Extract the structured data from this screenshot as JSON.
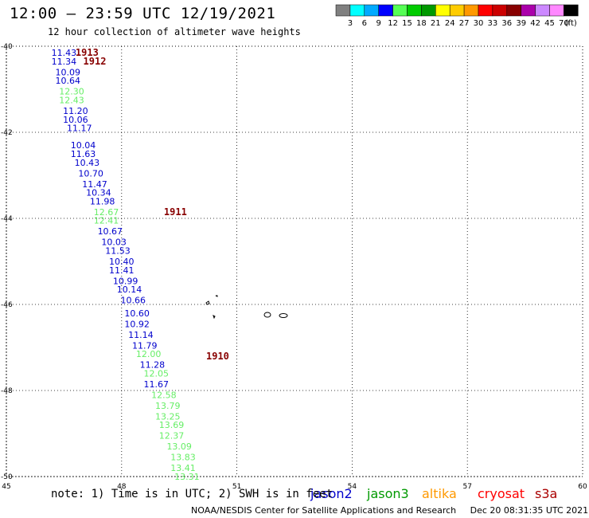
{
  "header": {
    "title": "12:00 – 23:59 UTC 12/19/2021",
    "subtitle": "12 hour collection of altimeter wave heights"
  },
  "footer": {
    "credit": "NOAA/NESDIS Center for Satellite Applications and Research",
    "timestamp": "Dec 20 08:31:35 UTC 2021",
    "note": "note:  1) Time is in UTC;  2) SWH is in feet"
  },
  "colorbar": {
    "unit": "(ft)",
    "ticks": [
      "3",
      "6",
      "9",
      "12",
      "15",
      "18",
      "21",
      "24",
      "27",
      "30",
      "33",
      "36",
      "39",
      "42",
      "45",
      "70"
    ],
    "colors": [
      "#808080",
      "#00ffff",
      "#00aaff",
      "#0000ff",
      "#55ff55",
      "#00cc00",
      "#009900",
      "#ffff00",
      "#ffcc00",
      "#ff9900",
      "#ff0000",
      "#cc0000",
      "#880000",
      "#aa00aa",
      "#cc88ff",
      "#ff88ff",
      "#000000"
    ]
  },
  "satellites": [
    {
      "name": "jason2",
      "color": "#0000cc"
    },
    {
      "name": "jason3",
      "color": "#009900"
    },
    {
      "name": "altika",
      "color": "#ff9900"
    },
    {
      "name": "cryosat",
      "color": "#ff0000"
    },
    {
      "name": "s3a",
      "color": "#aa0000"
    }
  ],
  "chart_data": {
    "type": "scatter",
    "xlim": [
      45,
      60
    ],
    "ylim": [
      -50,
      -40
    ],
    "x_ticks": [
      "45",
      "48",
      "51",
      "54",
      "57",
      "60"
    ],
    "y_ticks": [
      "-40",
      "-42",
      "-44",
      "-46",
      "-48",
      "-50"
    ],
    "grid": true,
    "series": [
      {
        "name": "jason2",
        "color": "#0000cc",
        "points": [
          {
            "x": 46.5,
            "y": -40.15,
            "v": "11.43"
          },
          {
            "x": 46.5,
            "y": -40.35,
            "v": "11.34"
          },
          {
            "x": 46.6,
            "y": -40.6,
            "v": "10.09"
          },
          {
            "x": 46.6,
            "y": -40.8,
            "v": "10.64"
          },
          {
            "x": 46.8,
            "y": -41.5,
            "v": "11.20"
          },
          {
            "x": 46.8,
            "y": -41.7,
            "v": "10.06"
          },
          {
            "x": 46.9,
            "y": -41.9,
            "v": "11.17"
          },
          {
            "x": 47.0,
            "y": -42.3,
            "v": "10.04"
          },
          {
            "x": 47.0,
            "y": -42.5,
            "v": "11.63"
          },
          {
            "x": 47.1,
            "y": -42.7,
            "v": "10.43"
          },
          {
            "x": 47.2,
            "y": -42.95,
            "v": "10.70"
          },
          {
            "x": 47.3,
            "y": -43.2,
            "v": "11.47"
          },
          {
            "x": 47.4,
            "y": -43.4,
            "v": "10.34"
          },
          {
            "x": 47.5,
            "y": -43.6,
            "v": "11.98"
          },
          {
            "x": 47.7,
            "y": -44.3,
            "v": "10.67"
          },
          {
            "x": 47.8,
            "y": -44.55,
            "v": "10.03"
          },
          {
            "x": 47.9,
            "y": -44.75,
            "v": "11.53"
          },
          {
            "x": 48.0,
            "y": -45.0,
            "v": "10.40"
          },
          {
            "x": 48.0,
            "y": -45.2,
            "v": "11.41"
          },
          {
            "x": 48.1,
            "y": -45.45,
            "v": "10.99"
          },
          {
            "x": 48.2,
            "y": -45.65,
            "v": "10.14"
          },
          {
            "x": 48.3,
            "y": -45.9,
            "v": "10.66"
          },
          {
            "x": 48.4,
            "y": -46.2,
            "v": "10.60"
          },
          {
            "x": 48.4,
            "y": -46.45,
            "v": "10.92"
          },
          {
            "x": 48.5,
            "y": -46.7,
            "v": "11.14"
          },
          {
            "x": 48.6,
            "y": -46.95,
            "v": "11.79"
          },
          {
            "x": 48.8,
            "y": -47.4,
            "v": "11.28"
          },
          {
            "x": 48.9,
            "y": -47.85,
            "v": "11.67"
          }
        ]
      },
      {
        "name": "jason3",
        "color": "#66ee66",
        "points": [
          {
            "x": 46.7,
            "y": -41.05,
            "v": "12.30"
          },
          {
            "x": 46.7,
            "y": -41.25,
            "v": "12.43"
          },
          {
            "x": 47.6,
            "y": -43.85,
            "v": "12.67"
          },
          {
            "x": 47.6,
            "y": -44.05,
            "v": "12.41"
          },
          {
            "x": 48.7,
            "y": -47.15,
            "v": "12.00"
          },
          {
            "x": 48.9,
            "y": -47.6,
            "v": "12.05"
          },
          {
            "x": 49.1,
            "y": -48.1,
            "v": "12.58"
          },
          {
            "x": 49.2,
            "y": -48.35,
            "v": "13.79"
          },
          {
            "x": 49.2,
            "y": -48.6,
            "v": "13.25"
          },
          {
            "x": 49.3,
            "y": -48.8,
            "v": "13.69"
          },
          {
            "x": 49.3,
            "y": -49.05,
            "v": "12.37"
          },
          {
            "x": 49.5,
            "y": -49.3,
            "v": "13.09"
          },
          {
            "x": 49.6,
            "y": -49.55,
            "v": "13.83"
          },
          {
            "x": 49.6,
            "y": -49.8,
            "v": "13.41"
          },
          {
            "x": 49.7,
            "y": -50.0,
            "v": "13.31"
          }
        ]
      }
    ],
    "annotations": [
      {
        "text": "1913",
        "x": 47.1,
        "y": -40.15,
        "color": "#880000"
      },
      {
        "text": "1912",
        "x": 47.3,
        "y": -40.35,
        "color": "#880000"
      },
      {
        "text": "1911",
        "x": 49.4,
        "y": -43.85,
        "color": "#880000"
      },
      {
        "text": "1910",
        "x": 50.5,
        "y": -47.2,
        "color": "#880000"
      }
    ]
  }
}
